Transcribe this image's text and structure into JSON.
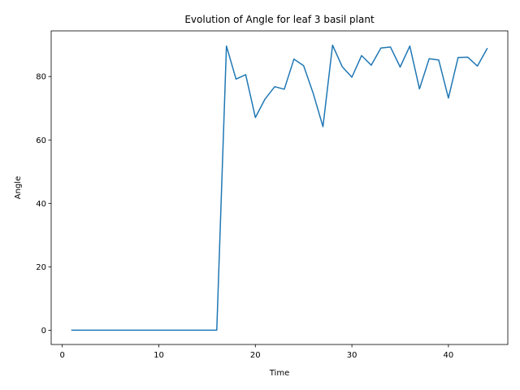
{
  "chart_data": {
    "type": "line",
    "title": "Evolution of Angle for leaf 3 basil plant",
    "xlabel": "Time",
    "ylabel": "Angle",
    "xlim": [
      -1.15,
      46.15
    ],
    "ylim": [
      -4.5,
      94.4
    ],
    "xticks": [
      0,
      10,
      20,
      30,
      40
    ],
    "yticks": [
      0,
      20,
      40,
      60,
      80
    ],
    "grid": false,
    "legend": "none",
    "series": [
      {
        "color": "#1f77b4",
        "x": [
          1,
          2,
          3,
          4,
          5,
          6,
          7,
          8,
          9,
          10,
          11,
          12,
          13,
          14,
          15,
          16,
          17,
          18,
          19,
          20,
          21,
          22,
          23,
          24,
          25,
          26,
          27,
          28,
          29,
          30,
          31,
          32,
          33,
          34,
          35,
          36,
          37,
          38,
          39,
          40,
          41,
          42,
          43,
          44
        ],
        "y": [
          0,
          0,
          0,
          0,
          0,
          0,
          0,
          0,
          0,
          0,
          0,
          0,
          0,
          0,
          0,
          0,
          89.6,
          79.2,
          80.6,
          67.1,
          72.9,
          76.8,
          76.0,
          85.5,
          83.4,
          74.6,
          64.2,
          89.9,
          83.1,
          79.8,
          86.6,
          83.6,
          89.0,
          89.3,
          83.0,
          89.6,
          76.1,
          85.6,
          85.2,
          73.2,
          86.0,
          86.1,
          83.3,
          88.8
        ]
      }
    ]
  }
}
